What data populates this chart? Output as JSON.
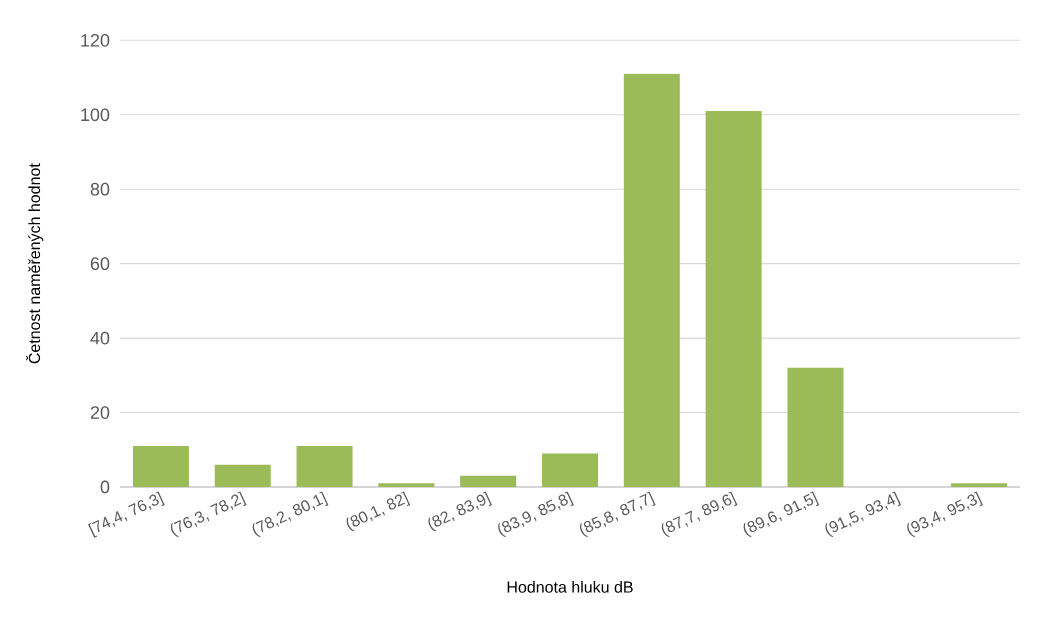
{
  "chart_data": {
    "type": "bar",
    "xlabel": "Hodnota hluku dB",
    "ylabel": "Četnost naměřených hodnot",
    "categories": [
      "[74,4, 76,3]",
      "(76,3, 78,2]",
      "(78,2, 80,1]",
      "(80,1, 82]",
      "(82, 83,9]",
      "(83,9, 85,8]",
      "(85,8, 87,7]",
      "(87,7, 89,6]",
      "(89,6, 91,5]",
      "(91,5, 93,4]",
      "(93,4, 95,3]"
    ],
    "values": [
      11,
      6,
      11,
      1,
      3,
      9,
      111,
      101,
      32,
      0,
      1
    ],
    "color": "#9bbb59",
    "ylim": [
      0,
      120
    ],
    "yticks": [
      0,
      20,
      40,
      60,
      80,
      100,
      120
    ],
    "grid": "y"
  }
}
